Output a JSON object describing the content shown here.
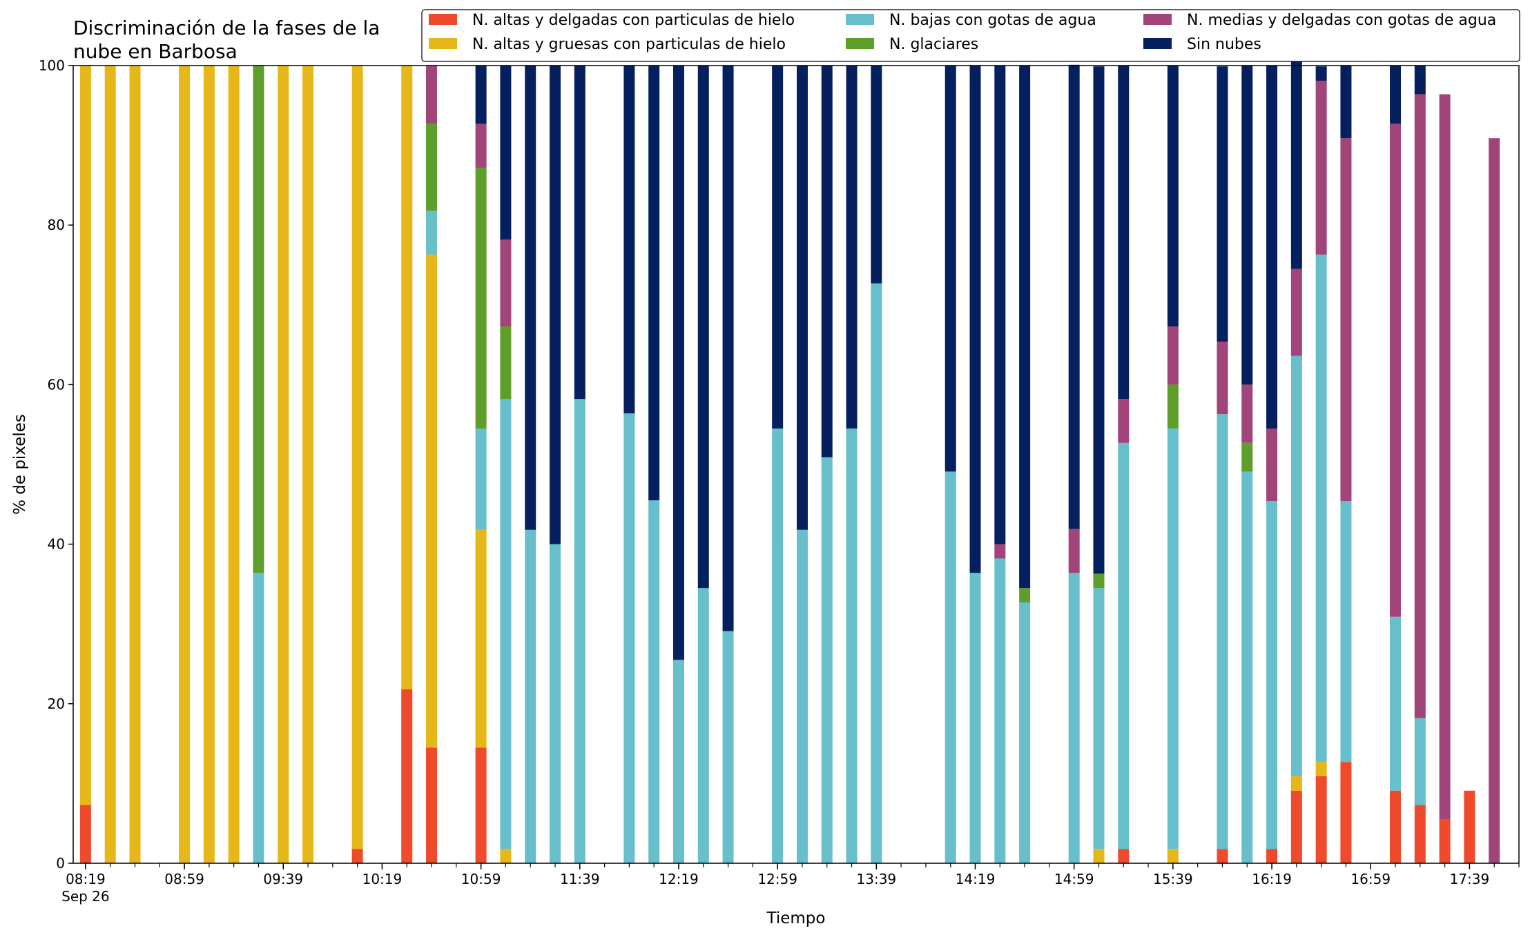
{
  "chart_data": {
    "type": "bar",
    "stacked": true,
    "title_line1": "Discriminación de la fases de la",
    "title_line2": "nube en Barbosa",
    "xlabel": "Tiempo",
    "ylabel": "% de pixeles",
    "ylim": [
      0,
      100
    ],
    "yticks": [
      0,
      20,
      40,
      60,
      80,
      100
    ],
    "x_ticklabels": [
      "08:19",
      "08:59",
      "09:39",
      "10:19",
      "10:59",
      "11:39",
      "12:19",
      "12:59",
      "13:39",
      "14:19",
      "14:59",
      "15:39",
      "16:19",
      "16:59",
      "17:39"
    ],
    "x_date_label": "Sep 26",
    "grid": false,
    "legend_location": "top-right",
    "times": [
      "08:19",
      "08:29",
      "08:39",
      "08:59",
      "09:09",
      "09:19",
      "09:29",
      "09:39",
      "09:49",
      "10:09",
      "10:29",
      "10:39",
      "10:59",
      "11:09",
      "11:19",
      "11:29",
      "11:39",
      "11:59",
      "12:09",
      "12:19",
      "12:29",
      "12:39",
      "12:59",
      "13:09",
      "13:19",
      "13:29",
      "13:39",
      "14:09",
      "14:19",
      "14:29",
      "14:39",
      "14:59",
      "15:09",
      "15:19",
      "15:39",
      "15:59",
      "16:09",
      "16:19",
      "16:29",
      "16:39",
      "16:49",
      "17:09",
      "17:19",
      "17:29",
      "17:39",
      "17:49"
    ],
    "series": [
      {
        "name": "N. altas y delgadas con particulas de hielo",
        "color": "#ef4a2b",
        "values": [
          7.3,
          0,
          0,
          0,
          0,
          0,
          0,
          0,
          0,
          1.8,
          21.8,
          14.5,
          14.5,
          0,
          0,
          0,
          0,
          0,
          0,
          0,
          0,
          0,
          0,
          0,
          0,
          0,
          0,
          0,
          0,
          0,
          0,
          0,
          0,
          1.8,
          0,
          1.8,
          0,
          1.8,
          9.1,
          10.9,
          12.7,
          9.1,
          7.3,
          5.5,
          9.1,
          0
        ]
      },
      {
        "name": "N. altas y gruesas con particulas de hielo",
        "color": "#e5b718",
        "values": [
          92.7,
          100,
          100,
          100,
          100,
          100,
          0,
          100,
          100,
          98.2,
          78.2,
          61.8,
          27.3,
          1.8,
          0,
          0,
          0,
          0,
          0,
          0,
          0,
          0,
          0,
          0,
          0,
          0,
          0,
          0,
          0,
          0,
          0,
          0,
          1.8,
          0,
          1.8,
          0,
          0,
          0,
          1.8,
          1.8,
          0,
          0,
          0,
          0,
          0,
          0
        ]
      },
      {
        "name": "N. bajas con gotas de agua",
        "color": "#66bfcb",
        "values": [
          0,
          0,
          0,
          0,
          0,
          0,
          36.4,
          0,
          0,
          0,
          0,
          5.5,
          12.7,
          56.4,
          41.8,
          40.0,
          58.2,
          56.4,
          45.5,
          25.5,
          34.5,
          29.1,
          54.5,
          41.8,
          50.9,
          54.5,
          72.7,
          49.1,
          36.4,
          38.2,
          32.7,
          36.4,
          32.7,
          50.9,
          52.7,
          54.5,
          49.1,
          43.6,
          52.7,
          63.6,
          32.7,
          21.8,
          10.9,
          0,
          0,
          0
        ]
      },
      {
        "name": "N. glaciares",
        "color": "#5e9e2b",
        "values": [
          0,
          0,
          0,
          0,
          0,
          0,
          63.6,
          0,
          0,
          0,
          0,
          10.9,
          32.7,
          9.1,
          0,
          0,
          0,
          0,
          0,
          0,
          0,
          0,
          0,
          0,
          0,
          0,
          0,
          0,
          0,
          0,
          1.8,
          0,
          1.8,
          0,
          5.5,
          0,
          3.6,
          0,
          0,
          0,
          0,
          0,
          0,
          0,
          0,
          0
        ]
      },
      {
        "name": "N. medias y delgadas con gotas de agua",
        "color": "#a0447a",
        "values": [
          0,
          0,
          0,
          0,
          0,
          0,
          0,
          0,
          0,
          0,
          0,
          7.3,
          5.5,
          10.9,
          0,
          0,
          0,
          0,
          0,
          0,
          0,
          0,
          0,
          0,
          0,
          0,
          0,
          0,
          0,
          1.8,
          0,
          5.5,
          0,
          5.5,
          7.3,
          9.1,
          7.3,
          9.1,
          10.9,
          21.8,
          45.5,
          61.8,
          78.2,
          90.9,
          0,
          90.9
        ]
      },
      {
        "name": "Sin nubes",
        "color": "#05205e",
        "values": [
          0,
          0,
          0,
          0,
          0,
          0,
          0,
          0,
          0,
          0,
          0,
          0,
          7.3,
          21.8,
          58.2,
          60.0,
          41.8,
          43.6,
          54.5,
          74.5,
          65.5,
          70.9,
          45.5,
          58.2,
          49.1,
          45.5,
          27.3,
          50.9,
          63.6,
          60.0,
          65.5,
          58.2,
          63.6,
          41.8,
          32.7,
          34.5,
          40.0,
          45.5,
          27.3,
          1.8,
          9.1,
          7.3,
          3.6,
          0,
          0,
          0
        ]
      }
    ]
  }
}
